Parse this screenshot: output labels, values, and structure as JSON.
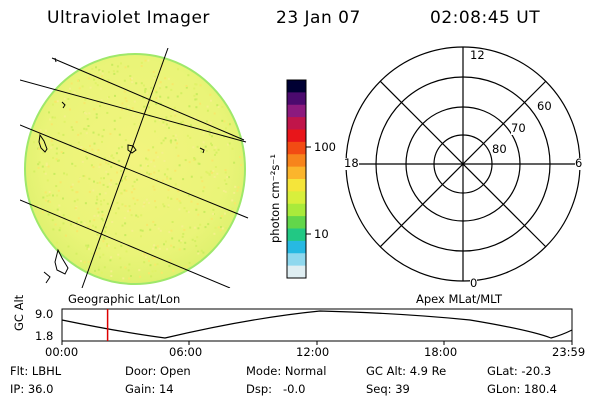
{
  "header": {
    "title": "Ultraviolet Imager",
    "date": "23 Jan 07",
    "time": "02:08:45 UT"
  },
  "colorbar": {
    "label": "photon cm⁻²s⁻¹",
    "ticks": [
      "100",
      "10"
    ],
    "colors": [
      "#000033",
      "#4b0a6e",
      "#8c1a7e",
      "#c0154a",
      "#e8151a",
      "#f24b13",
      "#f7841c",
      "#fbb52c",
      "#f5e53a",
      "#d8ef3c",
      "#a9ea3b",
      "#62d64a",
      "#22c884",
      "#27b9e2",
      "#8fd8ee",
      "#dfeef2"
    ]
  },
  "geo_panel": {
    "caption": "Geographic Lat/Lon",
    "disk_color": "#edf57a",
    "disk_edge_color": "#9ee86a"
  },
  "polar_panel": {
    "caption": "Apex MLat/MLT",
    "mlt_labels": {
      "top": "12",
      "left": "18",
      "right": "6",
      "bottom": "0"
    },
    "mlat_labels": [
      "60",
      "70",
      "80"
    ]
  },
  "timeline": {
    "ylabel": "GC Alt",
    "yticks": [
      "9.0",
      "1.8"
    ],
    "xticks": [
      "00:00",
      "06:00",
      "12:00",
      "18:00",
      "23:59"
    ],
    "current_time_hours": 2.146,
    "marker_color": "#dd0000"
  },
  "status": {
    "filter": "Flt: LBHL",
    "door": "Door: Open",
    "mode": "Mode: Normal",
    "gc_alt": "GC Alt: 4.9 Re",
    "glat": "GLat: -20.3",
    "ip": "IP: 36.0",
    "gain": "Gain: 14",
    "dsp": "Dsp:   -0.0",
    "seq": "Seq: 39",
    "glon": "GLon: 180.4"
  }
}
